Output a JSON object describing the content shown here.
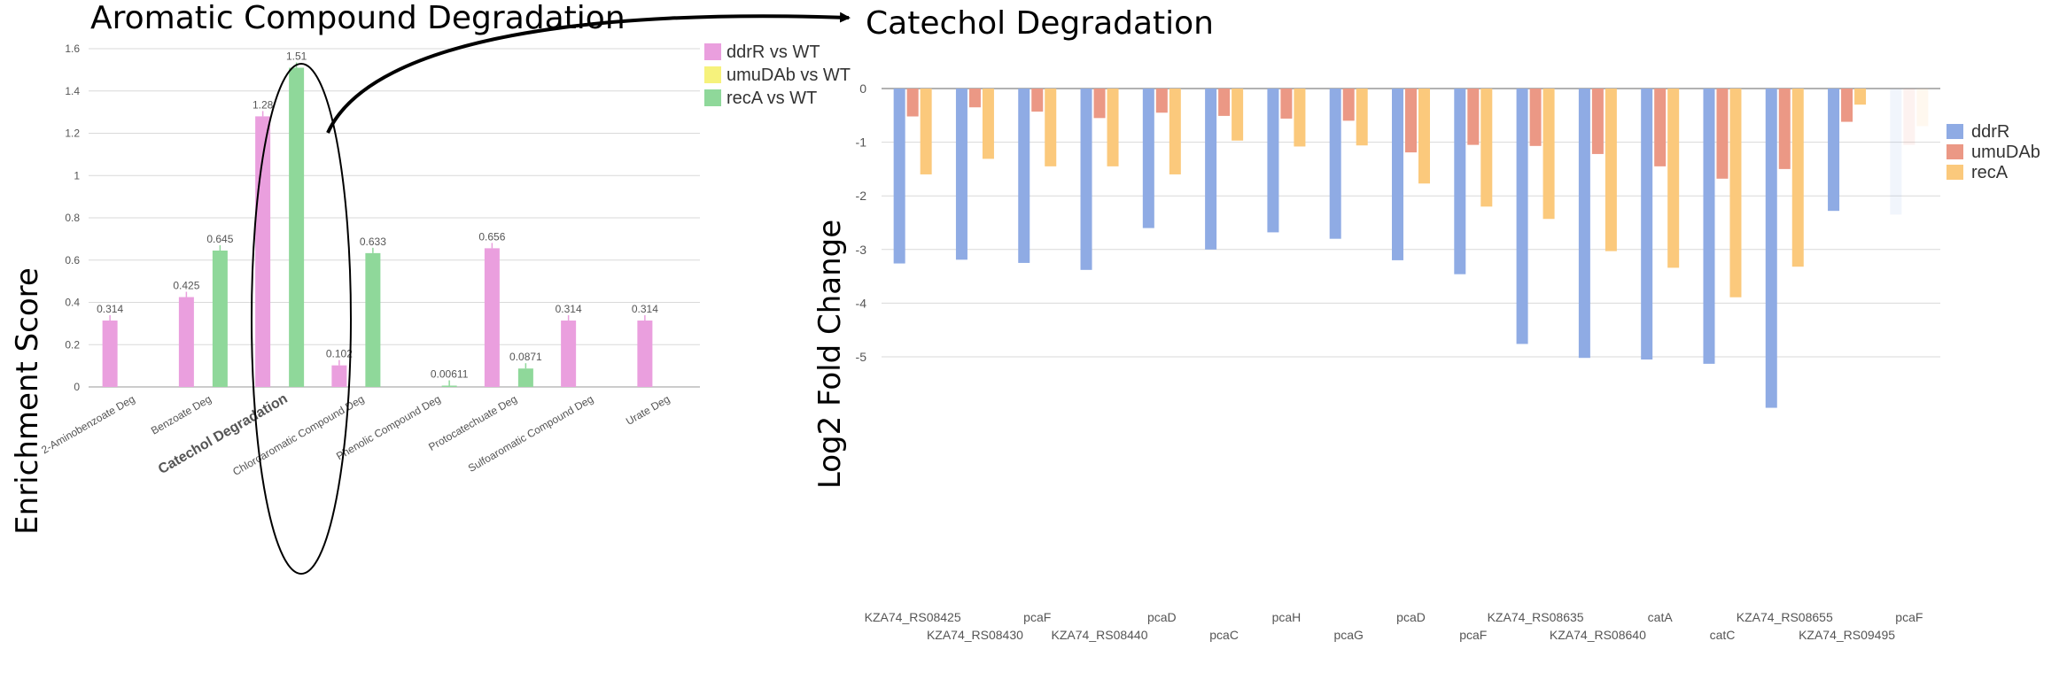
{
  "titles": {
    "left": "Aromatic Compound Degradation",
    "right": "Catechol Degradation"
  },
  "colors": {
    "ddrR_left": "#ea9fde",
    "umuDAb_left": "#f6f27c",
    "recA_left": "#8fd89a",
    "ddrR_right": "#8fabe4",
    "umuDAb_right": "#eb9885",
    "recA_right": "#fbc97c",
    "grid": "#d9d9d9",
    "axis_text": "#555555"
  },
  "chart_data": [
    {
      "type": "bar",
      "title": "Aromatic Compound Degradation",
      "xlabel": "",
      "ylabel": "Enrichment Score",
      "ylim": [
        0,
        1.6
      ],
      "yticks": [
        "0",
        "0.2",
        "0.4",
        "0.6",
        "0.8",
        "1",
        "1.2",
        "1.4",
        "1.6"
      ],
      "legend": "top-right",
      "grid": true,
      "highlighted_category": "Catechol Degradation",
      "categories": [
        "2-Aminobenzoate Deg",
        "Benzoate Deg",
        "Catechol Degradation",
        "Chloroaromatic Compound Deg",
        "Phenolic Compound Deg",
        "Protocatechuate Deg",
        "Sulfoaromatic Compound Deg",
        "Urate Deg"
      ],
      "series": [
        {
          "name": "ddrR vs WT",
          "values": [
            0.314,
            0.425,
            1.28,
            0.102,
            0,
            0.656,
            0.314,
            0.314
          ],
          "labels": [
            "0.314",
            "0.425",
            "1.28",
            "0.102",
            "",
            "0.656",
            "0.314",
            "0.314"
          ]
        },
        {
          "name": "umuDAb vs WT",
          "values": [
            0,
            0,
            0,
            0,
            0,
            0,
            0,
            0
          ],
          "labels": [
            "",
            "",
            "",
            "",
            "",
            "",
            "",
            ""
          ]
        },
        {
          "name": "recA vs WT",
          "values": [
            0,
            0.645,
            1.51,
            0.633,
            0.00611,
            0.0871,
            0,
            0
          ],
          "labels": [
            "",
            "0.645",
            "1.51",
            "0.633",
            "0.00611",
            "0.0871",
            "",
            ""
          ]
        }
      ]
    },
    {
      "type": "bar",
      "title": "Catechol Degradation",
      "xlabel": "",
      "ylabel": "Log2 Fold Change",
      "ylim": [
        -6,
        0
      ],
      "yticks": [
        "0",
        "-1",
        "-2",
        "-3",
        "-4",
        "-5"
      ],
      "legend": "top-right",
      "grid": true,
      "categories": [
        "KZA74_RS08425",
        "KZA74_RS08430",
        "pcaF",
        "KZA74_RS08440",
        "pcaD",
        "pcaC",
        "pcaH",
        "pcaG",
        "pcaD",
        "pcaF",
        "KZA74_RS08635",
        "KZA74_RS08640",
        "catA",
        "catC",
        "KZA74_RS08655",
        "KZA74_RS09495",
        "pcaF"
      ],
      "faded_categories": [
        16
      ],
      "series": [
        {
          "name": "ddrR",
          "values": [
            -3.26,
            -3.19,
            -3.25,
            -3.38,
            -2.6,
            -3.0,
            -2.68,
            -2.8,
            -3.2,
            -3.46,
            -4.76,
            -5.02,
            -5.05,
            -5.13,
            -5.95,
            -2.28,
            -2.35
          ]
        },
        {
          "name": "umuDAb",
          "values": [
            -0.52,
            -0.35,
            -0.43,
            -0.55,
            -0.45,
            -0.51,
            -0.56,
            -0.6,
            -1.19,
            -1.05,
            -1.07,
            -1.22,
            -1.45,
            -1.68,
            -1.5,
            -0.62,
            -1.05
          ]
        },
        {
          "name": "recA",
          "values": [
            -1.6,
            -1.31,
            -1.45,
            -1.45,
            -1.6,
            -0.97,
            -1.08,
            -1.06,
            -1.77,
            -2.2,
            -2.43,
            -3.03,
            -3.34,
            -3.89,
            -3.32,
            -0.3,
            -0.7
          ]
        }
      ]
    }
  ]
}
